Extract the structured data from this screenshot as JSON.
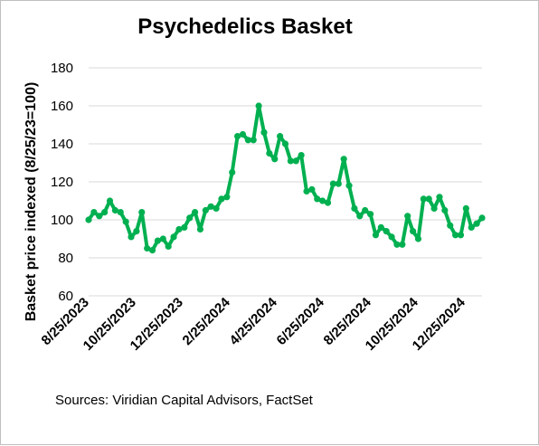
{
  "chart_data": {
    "type": "line",
    "title": "Psychedelics Basket",
    "xlabel": "",
    "ylabel": "Basket price indexed (8/25/23=100)",
    "source": "Sources: Viridian Capital Advisors, FactSet",
    "ylim": [
      60,
      180
    ],
    "yticks": [
      60,
      80,
      100,
      120,
      140,
      160,
      180
    ],
    "xticks": [
      "8/25/2023",
      "10/25/2023",
      "12/25/2023",
      "2/25/2024",
      "4/25/2024",
      "6/25/2024",
      "8/25/2024",
      "10/25/2024",
      "12/25/2024"
    ],
    "grid": true,
    "line_color": "#00b050",
    "series": [
      {
        "name": "",
        "values": [
          100,
          104,
          102,
          104,
          110,
          105,
          104,
          99,
          91,
          94,
          104,
          85,
          84,
          89,
          90,
          86,
          91,
          95,
          96,
          101,
          104,
          95,
          105,
          107,
          106,
          111,
          112,
          125,
          144,
          145,
          142,
          142,
          160,
          146,
          135,
          132,
          144,
          140,
          131,
          131,
          134,
          115,
          116,
          111,
          110,
          109,
          119,
          119,
          132,
          118,
          106,
          102,
          105,
          103,
          92,
          96,
          94,
          91,
          87,
          87,
          102,
          94,
          90,
          111,
          111,
          106,
          112,
          105,
          97,
          92,
          92,
          106,
          96,
          98,
          101
        ]
      }
    ]
  }
}
